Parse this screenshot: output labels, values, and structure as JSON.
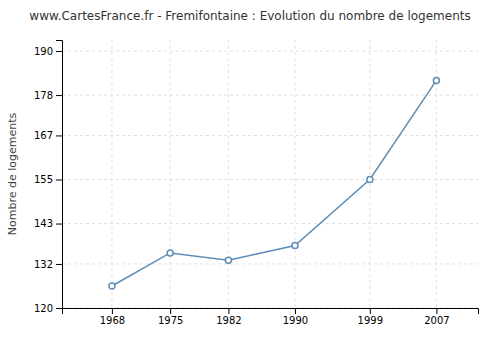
{
  "chart_data": {
    "type": "line",
    "title": "www.CartesFrance.fr - Fremifontaine : Evolution du nombre de logements",
    "y_label": "Nombre de logements",
    "x": [
      1968,
      1975,
      1982,
      1990,
      1999,
      2007
    ],
    "values": [
      126,
      135,
      133,
      137,
      155,
      182
    ],
    "xlim": [
      1962,
      2012
    ],
    "xticks": [
      1968,
      1975,
      1982,
      1990,
      1999,
      2007
    ],
    "ylim": [
      120,
      193
    ],
    "yticks": [
      120,
      132,
      143,
      155,
      167,
      178,
      190
    ],
    "color": "#5b8db8",
    "marker": "circle",
    "grid": true
  }
}
